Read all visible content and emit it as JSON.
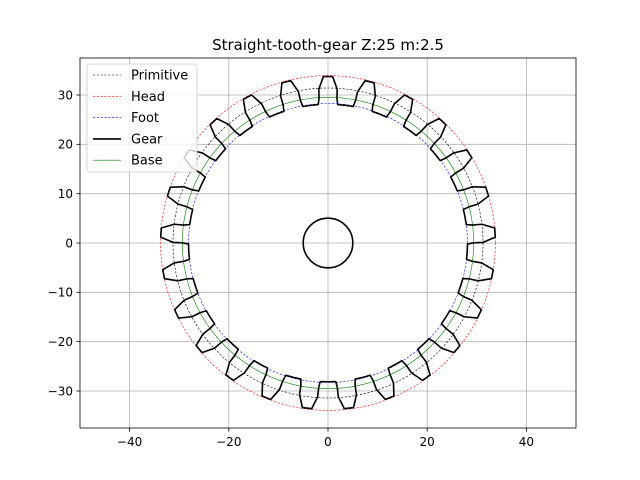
{
  "chart_data": {
    "type": "line",
    "title": "Straight-tooth-gear Z:25 m:2.5",
    "xlabel": "",
    "ylabel": "",
    "xlim": [
      -50,
      50
    ],
    "ylim": [
      -37.5,
      37.5
    ],
    "x_ticks": [
      -40,
      -20,
      0,
      20,
      40
    ],
    "y_ticks": [
      30,
      20,
      10,
      0,
      -10,
      -20,
      -30
    ],
    "x_tick_labels": [
      "−40",
      "−20",
      "0",
      "20",
      "40"
    ],
    "y_tick_labels": [
      "30",
      "20",
      "10",
      "0",
      "−10",
      "−20",
      "−30"
    ],
    "grid": true,
    "legend_position": "top-left",
    "gear": {
      "teeth": 25,
      "module": 2.5,
      "primitive_radius": 31.25,
      "head_radius": 33.75,
      "foot_radius": 28.125,
      "base_radius": 29.37,
      "hub_radius": 5.0
    },
    "series": [
      {
        "name": "Primitive",
        "color": "#000000",
        "style": "dashed",
        "width": 0.6
      },
      {
        "name": "Head",
        "color": "#ff0000",
        "style": "dashed",
        "width": 0.6
      },
      {
        "name": "Foot",
        "color": "#0000ff",
        "style": "dashed",
        "width": 0.6
      },
      {
        "name": "Gear",
        "color": "#000000",
        "style": "solid",
        "width": 1.6
      },
      {
        "name": "Base",
        "color": "#008000",
        "style": "solid",
        "width": 0.6
      }
    ]
  }
}
